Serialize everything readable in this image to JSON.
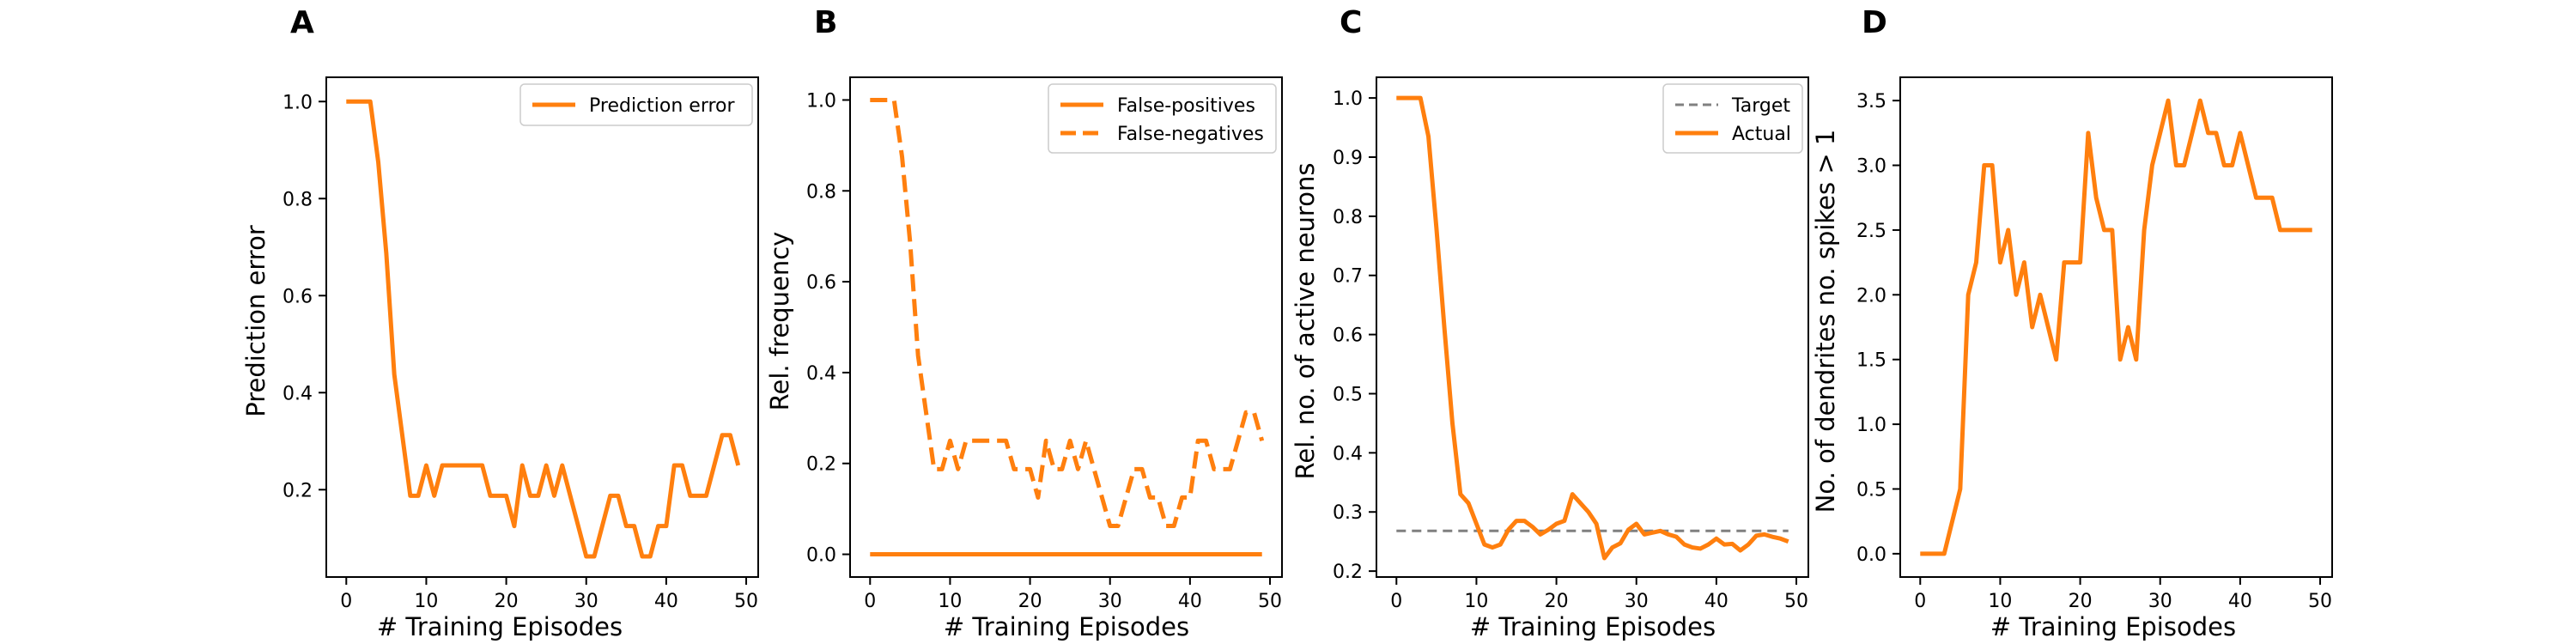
{
  "colors": {
    "orange": "#ff7f0e",
    "target": "#808080"
  },
  "chart_data": [
    {
      "panel": "A",
      "type": "line",
      "xlabel": "# Training Episodes",
      "ylabel": "Prediction error",
      "xlim": [
        -2.5,
        51.5
      ],
      "ylim": [
        0.02,
        1.05
      ],
      "xticks": [
        0,
        10,
        20,
        30,
        40,
        50
      ],
      "yticks": [
        0.2,
        0.4,
        0.6,
        0.8,
        1.0
      ],
      "ytick_labels": [
        "0.2",
        "0.4",
        "0.6",
        "0.8",
        "1.0"
      ],
      "grid": false,
      "legend": "top-right",
      "series": [
        {
          "name": "Prediction error",
          "style": "solid",
          "color": "#ff7f0e",
          "x": [
            0,
            1,
            2,
            3,
            4,
            5,
            6,
            7,
            8,
            9,
            10,
            11,
            12,
            13,
            14,
            15,
            16,
            17,
            18,
            19,
            20,
            21,
            22,
            23,
            24,
            25,
            26,
            27,
            28,
            29,
            30,
            31,
            32,
            33,
            34,
            35,
            36,
            37,
            38,
            39,
            40,
            41,
            42,
            43,
            44,
            45,
            46,
            47,
            48,
            49
          ],
          "y": [
            1.0,
            1.0,
            1.0,
            1.0,
            0.875,
            0.6875,
            0.4375,
            0.3125,
            0.1875,
            0.1875,
            0.25,
            0.1875,
            0.25,
            0.25,
            0.25,
            0.25,
            0.25,
            0.25,
            0.1875,
            0.1875,
            0.1875,
            0.125,
            0.25,
            0.1875,
            0.1875,
            0.25,
            0.1875,
            0.25,
            0.1875,
            0.125,
            0.0625,
            0.0625,
            0.125,
            0.1875,
            0.1875,
            0.125,
            0.125,
            0.0625,
            0.0625,
            0.125,
            0.125,
            0.25,
            0.25,
            0.1875,
            0.1875,
            0.1875,
            0.25,
            0.3125,
            0.3125,
            0.25
          ]
        }
      ]
    },
    {
      "panel": "B",
      "type": "line",
      "xlabel": "# Training Episodes",
      "ylabel": "Rel. frequency",
      "xlim": [
        -2.5,
        51.5
      ],
      "ylim": [
        -0.05,
        1.05
      ],
      "xticks": [
        0,
        10,
        20,
        30,
        40,
        50
      ],
      "yticks": [
        0.0,
        0.2,
        0.4,
        0.6,
        0.8,
        1.0
      ],
      "ytick_labels": [
        "0.0",
        "0.2",
        "0.4",
        "0.6",
        "0.8",
        "1.0"
      ],
      "grid": false,
      "legend": "top-right",
      "series": [
        {
          "name": "False-positives",
          "style": "solid",
          "color": "#ff7f0e",
          "x": [
            0,
            1,
            2,
            3,
            4,
            5,
            6,
            7,
            8,
            9,
            10,
            11,
            12,
            13,
            14,
            15,
            16,
            17,
            18,
            19,
            20,
            21,
            22,
            23,
            24,
            25,
            26,
            27,
            28,
            29,
            30,
            31,
            32,
            33,
            34,
            35,
            36,
            37,
            38,
            39,
            40,
            41,
            42,
            43,
            44,
            45,
            46,
            47,
            48,
            49
          ],
          "y": [
            0,
            0,
            0,
            0,
            0,
            0,
            0,
            0,
            0,
            0,
            0,
            0,
            0,
            0,
            0,
            0,
            0,
            0,
            0,
            0,
            0,
            0,
            0,
            0,
            0,
            0,
            0,
            0,
            0,
            0,
            0,
            0,
            0,
            0,
            0,
            0,
            0,
            0,
            0,
            0,
            0,
            0,
            0,
            0,
            0,
            0,
            0,
            0,
            0,
            0
          ]
        },
        {
          "name": "False-negatives",
          "style": "dashed",
          "color": "#ff7f0e",
          "x": [
            0,
            1,
            2,
            3,
            4,
            5,
            6,
            7,
            8,
            9,
            10,
            11,
            12,
            13,
            14,
            15,
            16,
            17,
            18,
            19,
            20,
            21,
            22,
            23,
            24,
            25,
            26,
            27,
            28,
            29,
            30,
            31,
            32,
            33,
            34,
            35,
            36,
            37,
            38,
            39,
            40,
            41,
            42,
            43,
            44,
            45,
            46,
            47,
            48,
            49
          ],
          "y": [
            1.0,
            1.0,
            1.0,
            1.0,
            0.875,
            0.6875,
            0.4375,
            0.3125,
            0.1875,
            0.1875,
            0.25,
            0.1875,
            0.25,
            0.25,
            0.25,
            0.25,
            0.25,
            0.25,
            0.1875,
            0.1875,
            0.1875,
            0.125,
            0.25,
            0.1875,
            0.1875,
            0.25,
            0.1875,
            0.25,
            0.1875,
            0.125,
            0.0625,
            0.0625,
            0.125,
            0.1875,
            0.1875,
            0.125,
            0.125,
            0.0625,
            0.0625,
            0.125,
            0.125,
            0.25,
            0.25,
            0.1875,
            0.1875,
            0.1875,
            0.25,
            0.3125,
            0.3125,
            0.25
          ]
        }
      ]
    },
    {
      "panel": "C",
      "type": "line",
      "xlabel": "# Training Episodes",
      "ylabel": "Rel. no. of active neurons",
      "xlim": [
        -2.5,
        51.5
      ],
      "ylim": [
        0.19,
        1.035
      ],
      "xticks": [
        0,
        10,
        20,
        30,
        40,
        50
      ],
      "yticks": [
        0.2,
        0.3,
        0.4,
        0.5,
        0.6,
        0.7,
        0.8,
        0.9,
        1.0
      ],
      "ytick_labels": [
        "0.2",
        "0.3",
        "0.4",
        "0.5",
        "0.6",
        "0.7",
        "0.8",
        "0.9",
        "1.0"
      ],
      "grid": false,
      "legend": "top-right",
      "series": [
        {
          "name": "Target",
          "style": "dashed-thin",
          "color": "#808080",
          "x": [
            0,
            49
          ],
          "y": [
            0.268,
            0.268
          ]
        },
        {
          "name": "Actual",
          "style": "solid",
          "color": "#ff7f0e",
          "x": [
            0,
            1,
            2,
            3,
            4,
            5,
            6,
            7,
            8,
            9,
            10,
            11,
            12,
            13,
            14,
            15,
            16,
            17,
            18,
            19,
            20,
            21,
            22,
            23,
            24,
            25,
            26,
            27,
            28,
            29,
            30,
            31,
            32,
            33,
            34,
            35,
            36,
            37,
            38,
            39,
            40,
            41,
            42,
            43,
            44,
            45,
            46,
            47,
            48,
            49
          ],
          "y": [
            1.0,
            1.0,
            1.0,
            1.0,
            0.935,
            0.78,
            0.61,
            0.45,
            0.33,
            0.315,
            0.28,
            0.245,
            0.24,
            0.245,
            0.27,
            0.285,
            0.285,
            0.275,
            0.262,
            0.27,
            0.28,
            0.285,
            0.33,
            0.315,
            0.3,
            0.28,
            0.222,
            0.24,
            0.247,
            0.27,
            0.28,
            0.262,
            0.265,
            0.268,
            0.262,
            0.258,
            0.245,
            0.24,
            0.238,
            0.245,
            0.255,
            0.245,
            0.246,
            0.235,
            0.245,
            0.26,
            0.262,
            0.258,
            0.255,
            0.25
          ]
        }
      ]
    },
    {
      "panel": "D",
      "type": "line",
      "xlabel": "# Training Episodes",
      "ylabel": "No. of dendrites no. spikes > 1",
      "xlim": [
        -2.5,
        51.5
      ],
      "ylim": [
        -0.18,
        3.68
      ],
      "xticks": [
        0,
        10,
        20,
        30,
        40,
        50
      ],
      "yticks": [
        0.0,
        0.5,
        1.0,
        1.5,
        2.0,
        2.5,
        3.0,
        3.5
      ],
      "ytick_labels": [
        "0.0",
        "0.5",
        "1.0",
        "1.5",
        "2.0",
        "2.5",
        "3.0",
        "3.5"
      ],
      "grid": false,
      "legend": "none",
      "series": [
        {
          "style": "solid",
          "color": "#ff7f0e",
          "x": [
            0,
            1,
            2,
            3,
            4,
            5,
            6,
            7,
            8,
            9,
            10,
            11,
            12,
            13,
            14,
            15,
            16,
            17,
            18,
            19,
            20,
            21,
            22,
            23,
            24,
            25,
            26,
            27,
            28,
            29,
            30,
            31,
            32,
            33,
            34,
            35,
            36,
            37,
            38,
            39,
            40,
            41,
            42,
            43,
            44,
            45,
            46,
            47,
            48,
            49
          ],
          "y": [
            0.0,
            0.0,
            0.0,
            0.0,
            0.25,
            0.5,
            2.0,
            2.25,
            3.0,
            3.0,
            2.25,
            2.5,
            2.0,
            2.25,
            1.75,
            2.0,
            1.75,
            1.5,
            2.25,
            2.25,
            2.25,
            3.25,
            2.75,
            2.5,
            2.5,
            1.5,
            1.75,
            1.5,
            2.5,
            3.0,
            3.25,
            3.5,
            3.0,
            3.0,
            3.25,
            3.5,
            3.25,
            3.25,
            3.0,
            3.0,
            3.25,
            3.0,
            2.75,
            2.75,
            2.75,
            2.5,
            2.5,
            2.5,
            2.5,
            2.5
          ]
        }
      ]
    }
  ]
}
